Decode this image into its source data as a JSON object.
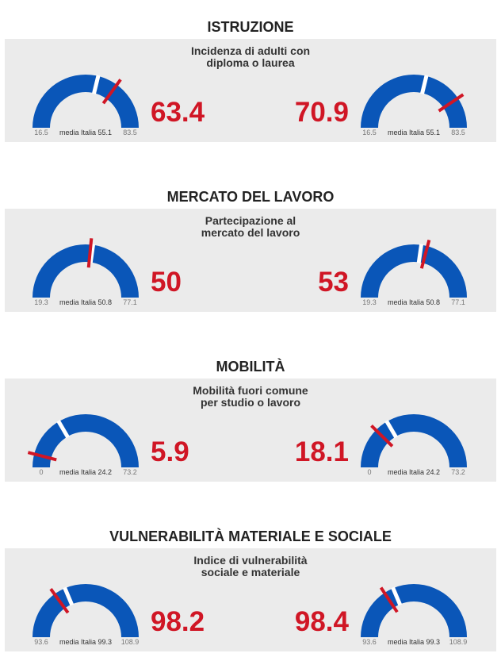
{
  "chart_data": [
    {
      "type": "gauge",
      "title": "ISTRUZIONE",
      "subtitle": [
        "Incidenza di adulti con",
        "diploma o laurea"
      ],
      "min": 16.5,
      "max": 83.5,
      "average": 55.1,
      "average_label": "media Italia 55.1",
      "values": [
        63.4,
        70.9
      ],
      "value_labels": [
        "63.4",
        "70.9"
      ],
      "min_label": "16.5",
      "max_label": "83.5"
    },
    {
      "type": "gauge",
      "title": "MERCATO DEL LAVORO",
      "subtitle": [
        "Partecipazione al",
        "mercato del lavoro"
      ],
      "min": 19.3,
      "max": 77.1,
      "average": 50.8,
      "average_label": "media Italia 50.8",
      "values": [
        50,
        53
      ],
      "value_labels": [
        "50",
        "53"
      ],
      "min_label": "19.3",
      "max_label": "77.1"
    },
    {
      "type": "gauge",
      "title": "MOBILITÀ",
      "subtitle": [
        "Mobilità fuori comune",
        "per studio o lavoro"
      ],
      "min": 0,
      "max": 73.2,
      "average": 24.2,
      "average_label": "media Italia 24.2",
      "values": [
        5.9,
        18.1
      ],
      "value_labels": [
        "5.9",
        "18.1"
      ],
      "min_label": "0",
      "max_label": "73.2"
    },
    {
      "type": "gauge",
      "title": "VULNERABILITÀ MATERIALE E SOCIALE",
      "subtitle": [
        "Indice di vulnerabilità",
        "sociale e materiale"
      ],
      "min": 93.6,
      "max": 108.9,
      "average": 99.3,
      "average_label": "media Italia 99.3",
      "values": [
        98.2,
        98.4
      ],
      "value_labels": [
        "98.2",
        "98.4"
      ],
      "min_label": "93.6",
      "max_label": "108.9"
    }
  ],
  "colors": {
    "gauge_fill": "#0a56b8",
    "needle": "#d01625",
    "value_text": "#d01625",
    "panel_bg": "#ebebeb",
    "average_gap": "#ffffff"
  }
}
